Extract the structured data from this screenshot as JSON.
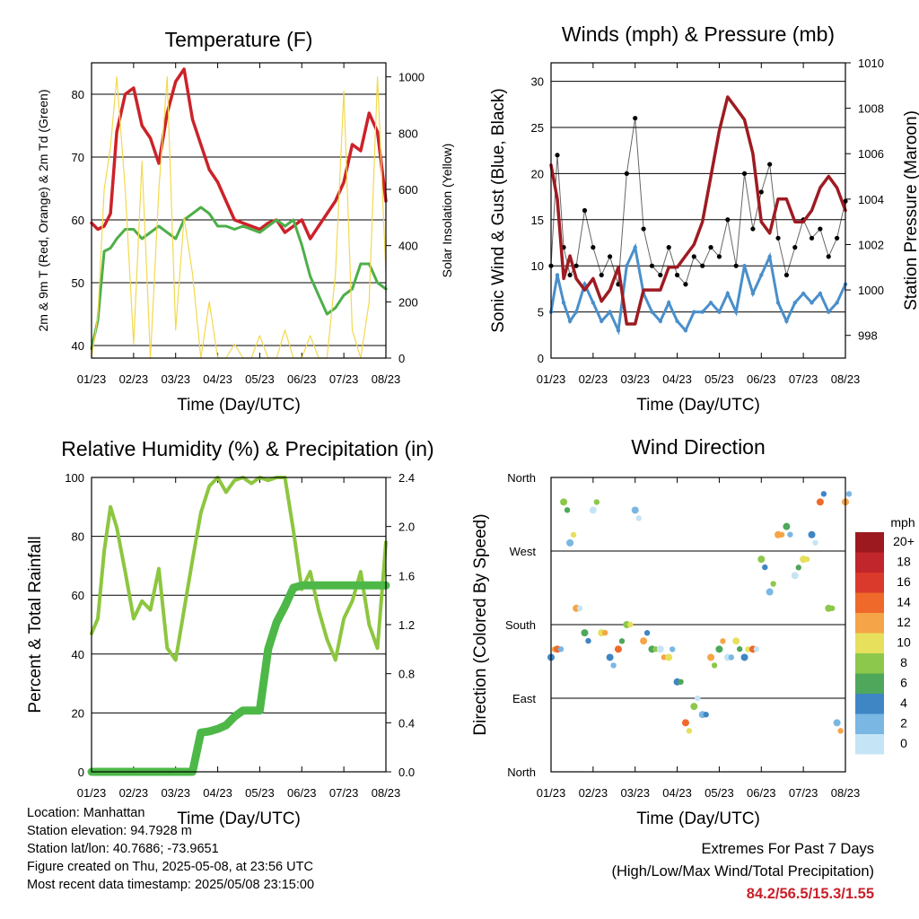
{
  "chart_data": [
    {
      "type": "line",
      "title": "Temperature (F)",
      "xlabel": "Time (Day/UTC)",
      "ylabel": "2m & 9m T (Red, Orange) & 2m Td (Green)",
      "y2label": "Solar Insolation (Yellow)",
      "x_ticks": [
        "01/23",
        "02/23",
        "03/23",
        "04/23",
        "05/23",
        "06/23",
        "07/23",
        "08/23"
      ],
      "ylim": [
        38,
        85
      ],
      "y_ticks": [
        40,
        50,
        60,
        70,
        80
      ],
      "y2lim": [
        0,
        1050
      ],
      "y2_ticks": [
        0,
        200,
        400,
        600,
        800,
        1000
      ],
      "x": [
        0,
        0.15,
        0.3,
        0.45,
        0.6,
        0.8,
        1.0,
        1.2,
        1.4,
        1.6,
        1.8,
        2.0,
        2.2,
        2.4,
        2.6,
        2.8,
        3.0,
        3.2,
        3.4,
        3.6,
        3.8,
        4.0,
        4.2,
        4.4,
        4.6,
        4.8,
        5.0,
        5.2,
        5.4,
        5.6,
        5.8,
        6.0,
        6.2,
        6.4,
        6.6,
        6.8,
        7.0
      ],
      "series": [
        {
          "color": "#cc2229",
          "values": [
            59.5,
            58.5,
            59,
            61,
            74,
            80,
            81,
            75,
            73,
            69,
            77,
            82,
            84,
            76,
            72,
            68,
            66,
            63,
            60,
            59.5,
            59,
            58.5,
            59.5,
            60,
            58,
            59,
            60,
            57,
            59,
            61,
            63,
            66,
            72,
            71,
            77,
            74,
            63
          ]
        },
        {
          "color": "#4daf4a",
          "values": [
            39.5,
            44,
            55,
            55.5,
            57,
            58.5,
            58.5,
            57,
            58,
            59,
            58,
            57,
            60,
            61,
            62,
            61,
            59,
            59,
            58.5,
            59,
            58.5,
            58,
            59,
            60,
            59,
            60,
            56,
            51,
            48,
            45,
            46,
            48,
            49,
            53,
            53,
            50,
            49
          ]
        },
        {
          "color": "#f2d94e",
          "values": [
            0,
            150,
            600,
            750,
            1000,
            600,
            50,
            700,
            0,
            600,
            1000,
            100,
            500,
            300,
            0,
            200,
            0,
            0,
            50,
            0,
            0,
            80,
            0,
            0,
            100,
            0,
            0,
            80,
            0,
            0,
            300,
            950,
            100,
            0,
            200,
            1000,
            300
          ]
        }
      ]
    },
    {
      "type": "scatter",
      "title": "Winds (mph) & Pressure (mb)",
      "xlabel": "Time (Day/UTC)",
      "ylabel": "Sonic Wind & Gust (Blue, Black)",
      "y2label": "Station Pressure (Maroon)",
      "x_ticks": [
        "01/23",
        "02/23",
        "03/23",
        "04/23",
        "05/23",
        "06/23",
        "07/23",
        "08/23"
      ],
      "ylim": [
        0,
        32
      ],
      "y_ticks": [
        0,
        5,
        10,
        15,
        20,
        25,
        30
      ],
      "y2lim": [
        997,
        1010
      ],
      "y2_ticks": [
        998,
        1000,
        1002,
        1004,
        1006,
        1008,
        1010
      ],
      "x": [
        0,
        0.15,
        0.3,
        0.45,
        0.6,
        0.8,
        1.0,
        1.2,
        1.4,
        1.6,
        1.8,
        2.0,
        2.2,
        2.4,
        2.6,
        2.8,
        3.0,
        3.2,
        3.4,
        3.6,
        3.8,
        4.0,
        4.2,
        4.4,
        4.6,
        4.8,
        5.0,
        5.2,
        5.4,
        5.6,
        5.8,
        6.0,
        6.2,
        6.4,
        6.6,
        6.8,
        7.0
      ],
      "series": [
        {
          "color": "#000000",
          "values": [
            10,
            22,
            12,
            9,
            10,
            16,
            12,
            9,
            11,
            8,
            20,
            26,
            14,
            10,
            9,
            12,
            9,
            8,
            11,
            10,
            12,
            11,
            15,
            10,
            20,
            14,
            18,
            21,
            13,
            9,
            12,
            15,
            13,
            14,
            11,
            13,
            17
          ]
        },
        {
          "color": "#4a8fcb",
          "values": [
            5,
            9,
            6,
            4,
            5,
            8,
            6,
            4,
            5,
            3,
            10,
            12,
            7,
            5,
            4,
            6,
            4,
            3,
            5,
            5,
            6,
            5,
            7,
            5,
            10,
            7,
            9,
            11,
            6,
            4,
            6,
            7,
            6,
            7,
            5,
            6,
            8
          ]
        },
        {
          "color": "#9e1b22",
          "values": [
            1005.5,
            1004,
            1000.5,
            1001.5,
            1000.5,
            1000,
            1000.5,
            999.5,
            1000,
            1001,
            998.5,
            998.5,
            1000,
            1000,
            1000,
            1001,
            1001,
            1001.5,
            1002,
            1003,
            1005,
            1007,
            1008.5,
            1008,
            1007.5,
            1006,
            1003,
            1002.5,
            1004,
            1004,
            1003,
            1003,
            1003.5,
            1004.5,
            1005,
            1004.5,
            1003.5
          ]
        }
      ]
    },
    {
      "type": "line",
      "title": "Relative Humidity (%) & Precipitation (in)",
      "xlabel": "Time (Day/UTC)",
      "ylabel": "Percent & Total Rainfall",
      "x_ticks": [
        "01/23",
        "02/23",
        "03/23",
        "04/23",
        "05/23",
        "06/23",
        "07/23",
        "08/23"
      ],
      "ylim": [
        0,
        100
      ],
      "y_ticks": [
        0,
        20,
        40,
        60,
        80,
        100
      ],
      "y2lim": [
        0,
        2.4
      ],
      "y2_ticks": [
        "0.0",
        "0.4",
        "0.8",
        "1.2",
        "1.6",
        "2.0",
        "2.4"
      ],
      "x": [
        0,
        0.15,
        0.3,
        0.45,
        0.6,
        0.8,
        1.0,
        1.2,
        1.4,
        1.6,
        1.8,
        2.0,
        2.2,
        2.4,
        2.6,
        2.8,
        3.0,
        3.2,
        3.4,
        3.6,
        3.8,
        4.0,
        4.2,
        4.4,
        4.6,
        4.8,
        5.0,
        5.2,
        5.4,
        5.6,
        5.8,
        6.0,
        6.2,
        6.4,
        6.6,
        6.8,
        7.0
      ],
      "series": [
        {
          "color": "#8dc63f",
          "values": [
            47,
            52,
            75,
            90,
            83,
            68,
            52,
            58,
            55,
            69,
            42,
            38,
            55,
            72,
            88,
            97,
            100,
            95,
            99,
            100,
            98,
            100,
            99,
            100,
            100,
            82,
            62,
            68,
            55,
            45,
            38,
            52,
            58,
            68,
            50,
            42,
            78
          ]
        },
        {
          "color": "#4db848",
          "values": [
            0,
            0,
            0,
            0,
            0,
            0,
            0,
            0,
            0,
            0,
            0,
            0,
            0,
            0,
            0.32,
            0.33,
            0.35,
            0.38,
            0.45,
            0.5,
            0.5,
            0.5,
            1.0,
            1.22,
            1.35,
            1.5,
            1.52,
            1.52,
            1.52,
            1.52,
            1.52,
            1.52,
            1.52,
            1.52,
            1.52,
            1.52,
            1.52
          ]
        }
      ]
    },
    {
      "type": "scatter",
      "title": "Wind Direction",
      "xlabel": "Time (Day/UTC)",
      "ylabel": "Direction (Colored By Speed)",
      "x_ticks": [
        "01/23",
        "02/23",
        "03/23",
        "04/23",
        "05/23",
        "06/23",
        "07/23",
        "08/23"
      ],
      "y_tick_labels": [
        "North",
        "East",
        "South",
        "West",
        "North"
      ],
      "ylim": [
        0,
        360
      ],
      "legend_title": "mph",
      "legend_labels": [
        "20+",
        "18",
        "16",
        "14",
        "12",
        "10",
        "8",
        "6",
        "4",
        "2",
        "0"
      ],
      "legend_colors": [
        "#9c1a1f",
        "#c0262b",
        "#d93a2b",
        "#ef6a2a",
        "#f5a547",
        "#e6e05c",
        "#8cc84b",
        "#4ea75a",
        "#3f86c4",
        "#7ab7e2",
        "#c5e4f5"
      ],
      "x": [
        0,
        0.15,
        0.3,
        0.45,
        0.6,
        0.8,
        1.0,
        1.2,
        1.4,
        1.6,
        1.8,
        2.0,
        2.2,
        2.4,
        2.6,
        2.8,
        3.0,
        3.2,
        3.4,
        3.6,
        3.8,
        4.0,
        4.2,
        4.4,
        4.6,
        4.8,
        5.0,
        5.2,
        5.4,
        5.6,
        5.8,
        6.0,
        6.2,
        6.4,
        6.6,
        6.8,
        7.0
      ],
      "series": [
        {
          "name": "",
          "values": [
            140,
            150,
            330,
            280,
            200,
            170,
            320,
            170,
            140,
            150,
            180,
            320,
            160,
            150,
            150,
            140,
            110,
            60,
            80,
            70,
            140,
            150,
            140,
            160,
            140,
            150,
            260,
            220,
            290,
            300,
            240,
            260,
            290,
            330,
            200,
            60,
            330
          ]
        }
      ]
    }
  ],
  "info": {
    "location": "Location: Manhattan",
    "elevation": "Station elevation: 94.7928 m",
    "latlon": "Station lat/lon: 40.7686; -73.9651",
    "created": "Figure created on Thu, 2025-05-08, at 23:56 UTC",
    "recent": "Most recent data timestamp: 2025/05/08 23:15:00"
  },
  "extremes": {
    "line1": "Extremes For Past 7 Days",
    "line2": "(High/Low/Max Wind/Total Precipitation)",
    "values": "84.2/56.5/15.3/1.55"
  }
}
